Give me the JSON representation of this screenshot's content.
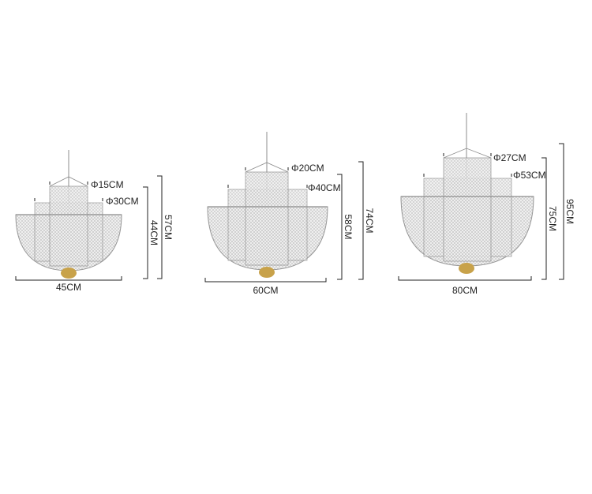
{
  "colors": {
    "mesh": "#b9b9b9",
    "frame": "#8c8c8c",
    "cap": "#c8a24a",
    "dimension_line": "#222222"
  },
  "lamps": [
    {
      "top_diameter": "Φ15CM",
      "mid_diameter": "Φ30CM",
      "body_height": "44CM",
      "total_height": "57CM",
      "width": "45CM"
    },
    {
      "top_diameter": "Φ20CM",
      "mid_diameter": "Φ40CM",
      "body_height": "58CM",
      "total_height": "74CM",
      "width": "60CM"
    },
    {
      "top_diameter": "Φ27CM",
      "mid_diameter": "Φ53CM",
      "body_height": "75CM",
      "total_height": "95CM",
      "width": "80CM"
    }
  ]
}
